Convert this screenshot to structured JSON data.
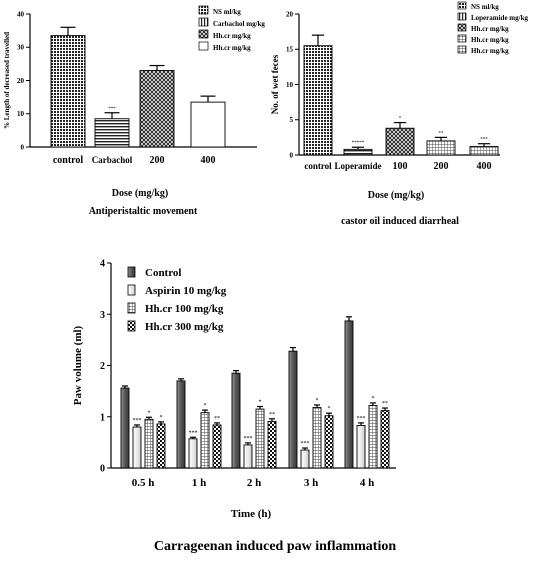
{
  "figure_caption": "Carrageenan induced paw inflammation",
  "chart_data": [
    {
      "type": "bar",
      "title": "Antiperistaltic movement",
      "xlabel": "Dose (mg/kg)",
      "ylabel": "% Length of decreased travelled",
      "ylim": [
        0,
        40
      ],
      "yticks": [
        "0",
        "10",
        "20",
        "30",
        "40"
      ],
      "categories": [
        "control",
        "Carbachol",
        "200",
        "400"
      ],
      "values": [
        33.5,
        8.5,
        23,
        13.5
      ],
      "errors": [
        2.5,
        1.8,
        1.5,
        1.8
      ],
      "sig": [
        "",
        "***",
        "",
        ""
      ],
      "legend": [
        "NS ml/kg",
        "Carbachol mg/kg",
        "Hh.cr mg/kg",
        "Hh.cr mg/kg"
      ],
      "legend_position": "top-right",
      "grid": false
    },
    {
      "type": "bar",
      "title": "castor oil induced diarrheal",
      "xlabel": "Dose (mg/kg)",
      "ylabel": "No. of wet feces",
      "ylim": [
        0,
        20
      ],
      "yticks": [
        "0",
        "5",
        "10",
        "15",
        "20"
      ],
      "categories": [
        "control",
        "Loperamide",
        "100",
        "200",
        "400"
      ],
      "values": [
        15.5,
        0.8,
        3.8,
        2,
        1.2
      ],
      "errors": [
        1.5,
        0.3,
        0.8,
        0.5,
        0.4
      ],
      "sig": [
        "",
        "*****",
        "*",
        "**",
        "***"
      ],
      "legend": [
        "NS ml/kg",
        "Loperamide mg/kg",
        "Hh.cr mg/kg",
        "Hh.cr mg/kg",
        "Hh.cr mg/kg"
      ],
      "legend_position": "top-right",
      "grid": false
    },
    {
      "type": "bar",
      "title": "",
      "xlabel": "Time (h)",
      "ylabel": "Paw volume (ml)",
      "ylim": [
        0,
        4
      ],
      "yticks": [
        "0",
        "1",
        "2",
        "3",
        "4"
      ],
      "categories": [
        "0.5 h",
        "1 h",
        "2 h",
        "3 h",
        "4 h"
      ],
      "series": [
        {
          "name": "Control",
          "values": [
            1.56,
            1.7,
            1.85,
            2.28,
            2.87
          ],
          "errors": [
            0.04,
            0.04,
            0.05,
            0.07,
            0.08
          ],
          "sig": [
            "",
            "",
            "",
            "",
            ""
          ]
        },
        {
          "name": "Aspirin 10 mg/kg",
          "values": [
            0.8,
            0.57,
            0.45,
            0.35,
            0.83
          ],
          "errors": [
            0.04,
            0.03,
            0.04,
            0.04,
            0.05
          ],
          "sig": [
            "***",
            "***",
            "***",
            "***",
            "***"
          ]
        },
        {
          "name": "Hh.cr 100 mg/kg",
          "values": [
            0.95,
            1.08,
            1.15,
            1.18,
            1.22
          ],
          "errors": [
            0.04,
            0.05,
            0.05,
            0.05,
            0.05
          ],
          "sig": [
            "*",
            "*",
            "*",
            "*",
            "*"
          ]
        },
        {
          "name": "Hh.cr 300 mg/kg",
          "values": [
            0.86,
            0.84,
            0.91,
            1.02,
            1.12
          ],
          "errors": [
            0.04,
            0.04,
            0.05,
            0.05,
            0.05
          ],
          "sig": [
            "*",
            "**",
            "**",
            "*",
            "**"
          ]
        }
      ],
      "legend_position": "top-left",
      "grid": false
    }
  ]
}
